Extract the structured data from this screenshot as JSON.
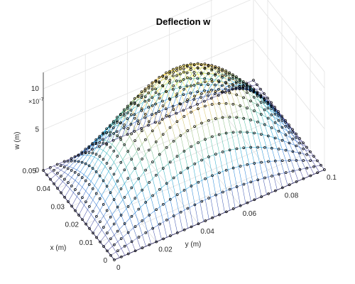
{
  "chart_data": {
    "type": "surface3d",
    "title": "Deflection w",
    "xlabel": "x (m)",
    "ylabel": "y (m)",
    "zlabel": "w (m)",
    "z_exponent_label": "×10",
    "z_exponent_power": "-7",
    "xlim": [
      0,
      0.05
    ],
    "ylim": [
      0,
      0.1
    ],
    "zlim": [
      0,
      1.2e-06
    ],
    "x_ticks": [
      0,
      0.01,
      0.02,
      0.03,
      0.04,
      0.05
    ],
    "x_tick_labels": [
      "0",
      "0.01",
      "0.02",
      "0.03",
      "0.04",
      "0.05"
    ],
    "y_ticks": [
      0,
      0.02,
      0.04,
      0.06,
      0.08,
      0.1
    ],
    "y_tick_labels": [
      "0",
      "0.02",
      "0.04",
      "0.06",
      "0.08",
      "0.1"
    ],
    "z_ticks": [
      0,
      5e-07,
      1e-06
    ],
    "z_tick_labels": [
      "0",
      "5",
      "10"
    ],
    "w_max": 1.2e-06,
    "mesh_nx": 21,
    "mesh_ny": 41,
    "markers_nx": 21,
    "markers_ny": 31,
    "grid": true,
    "surface_colormap": "parula",
    "marker_color": "#000000"
  }
}
